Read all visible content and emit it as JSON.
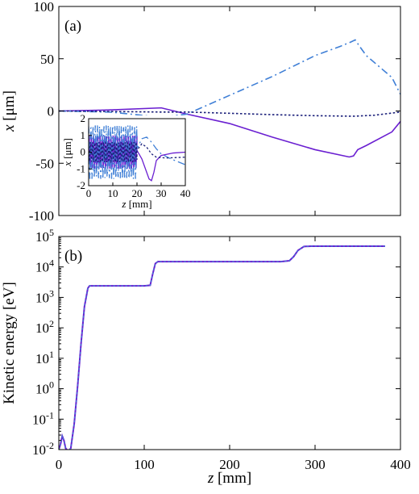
{
  "chart_data": [
    {
      "panel_label": "(a)",
      "type": "line",
      "xlabel_var": "z",
      "xlabel_unit": " [mm]",
      "ylabel_var": "x",
      "ylabel_unit": " [μm]",
      "xlim": [
        0,
        400
      ],
      "ylim": [
        -100,
        100
      ],
      "xticks": [
        0,
        100,
        200,
        300,
        400
      ],
      "show_xtick_labels": false,
      "yticks": [
        -100,
        -50,
        0,
        50,
        100
      ],
      "ytick_labels": [
        "-100",
        "-50",
        "0",
        "50",
        "100"
      ],
      "series": [
        {
          "style": "solid",
          "color": "#6a1fd1",
          "points": [
            [
              0,
              0
            ],
            [
              60,
              1
            ],
            [
              120,
              3
            ],
            [
              150,
              -3
            ],
            [
              200,
              -12
            ],
            [
              250,
              -25
            ],
            [
              300,
              -37
            ],
            [
              340,
              -44
            ],
            [
              345,
              -43
            ],
            [
              350,
              -37
            ],
            [
              360,
              -33
            ],
            [
              390,
              -20
            ],
            [
              410,
              0
            ]
          ]
        },
        {
          "style": "dash-dot",
          "color": "#3f7fd6",
          "points": [
            [
              0,
              0
            ],
            [
              60,
              -1
            ],
            [
              120,
              -6
            ],
            [
              150,
              -3
            ],
            [
              200,
              15
            ],
            [
              250,
              33
            ],
            [
              300,
              53
            ],
            [
              330,
              62
            ],
            [
              342,
              66
            ],
            [
              347,
              68
            ],
            [
              352,
              62
            ],
            [
              360,
              53
            ],
            [
              390,
              32
            ],
            [
              410,
              0
            ]
          ]
        },
        {
          "style": "dotted",
          "color": "#1a1f7a",
          "points": [
            [
              0,
              0
            ],
            [
              60,
              -0.5
            ],
            [
              120,
              -1
            ],
            [
              150,
              -1
            ],
            [
              200,
              -2.2
            ],
            [
              250,
              -3.5
            ],
            [
              300,
              -4.5
            ],
            [
              345,
              -5
            ],
            [
              370,
              -4
            ],
            [
              410,
              0
            ]
          ]
        }
      ],
      "inset": {
        "type": "line",
        "xlabel_var": "z",
        "xlabel_unit": " [mm]",
        "ylabel_var": "x",
        "ylabel_unit": " [μm]",
        "xlim": [
          0,
          40
        ],
        "ylim": [
          -2,
          2
        ],
        "xticks": [
          0,
          10,
          20,
          30,
          40
        ],
        "xtick_labels": [
          "0",
          "10",
          "20",
          "30",
          "40"
        ],
        "yticks": [
          -2,
          -1,
          0,
          1,
          2
        ],
        "ytick_labels": [
          "-2",
          "-1",
          "0",
          "1",
          "2"
        ],
        "oscillation_region": [
          0,
          20
        ],
        "series": [
          {
            "style": "solid",
            "color": "#6a1fd1",
            "osc_amplitude": 1.0,
            "tail": [
              [
                20,
                0.1
              ],
              [
                22,
                -0.4
              ],
              [
                24,
                -1.2
              ],
              [
                25,
                -1.6
              ],
              [
                26,
                -1.7
              ],
              [
                27,
                -1.2
              ],
              [
                28,
                -0.5
              ],
              [
                30,
                -0.2
              ],
              [
                35,
                -0.05
              ],
              [
                40,
                0.0
              ]
            ]
          },
          {
            "style": "dash-dot",
            "color": "#3f7fd6",
            "osc_amplitude": 1.6,
            "tail": [
              [
                20,
                0.2
              ],
              [
                22,
                0.8
              ],
              [
                24,
                0.9
              ],
              [
                26,
                0.6
              ],
              [
                28,
                0.2
              ],
              [
                30,
                -0.1
              ],
              [
                34,
                -0.4
              ],
              [
                40,
                -0.75
              ]
            ]
          },
          {
            "style": "dotted",
            "color": "#1a1f7a",
            "osc_amplitude": 0.6,
            "tail": [
              [
                20,
                0.1
              ],
              [
                22,
                0.5
              ],
              [
                24,
                0.3
              ],
              [
                26,
                -0.1
              ],
              [
                28,
                -0.3
              ],
              [
                32,
                -0.35
              ],
              [
                40,
                -0.3
              ]
            ]
          }
        ]
      }
    },
    {
      "panel_label": "(b)",
      "type": "line",
      "xlabel_var": "z",
      "xlabel_unit": " [mm]",
      "ylabel": "Kinetic energy [eV]",
      "xlim": [
        0,
        400
      ],
      "ylim_log10": [
        -2,
        5
      ],
      "yscale": "log",
      "xticks": [
        0,
        100,
        200,
        300,
        400
      ],
      "xtick_labels": [
        "0",
        "100",
        "200",
        "300",
        "400"
      ],
      "yticks_exp": [
        "-2",
        "-1",
        "0",
        "1",
        "2",
        "3",
        "4",
        "5"
      ],
      "ytick_base": "10",
      "series": [
        {
          "style": "solid",
          "color": "#6a1fd1",
          "points": [
            [
              0,
              0.01
            ],
            [
              2,
              0.015
            ],
            [
              4,
              0.028
            ],
            [
              6,
              0.02
            ],
            [
              8,
              0.011
            ],
            [
              11,
              0.009
            ],
            [
              14,
              0.011
            ],
            [
              18,
              0.07
            ],
            [
              22,
              1.2
            ],
            [
              26,
              30
            ],
            [
              30,
              500
            ],
            [
              34,
              2000
            ],
            [
              36,
              2400
            ],
            [
              40,
              2400
            ],
            [
              100,
              2400
            ],
            [
              107,
              2500
            ],
            [
              110,
              6000
            ],
            [
              113,
              13000
            ],
            [
              116,
              15000
            ],
            [
              120,
              15000
            ],
            [
              260,
              15000
            ],
            [
              270,
              16000
            ],
            [
              275,
              22000
            ],
            [
              280,
              35000
            ],
            [
              287,
              47000
            ],
            [
              295,
              48000
            ],
            [
              382,
              48000
            ]
          ]
        },
        {
          "style": "dotted",
          "color": "#3f7fd6",
          "points": [
            [
              0,
              0.01
            ],
            [
              2,
              0.015
            ],
            [
              4,
              0.028
            ],
            [
              6,
              0.02
            ],
            [
              8,
              0.011
            ],
            [
              11,
              0.009
            ],
            [
              14,
              0.011
            ],
            [
              18,
              0.07
            ],
            [
              22,
              1.2
            ],
            [
              26,
              30
            ],
            [
              30,
              500
            ],
            [
              34,
              2000
            ],
            [
              36,
              2400
            ],
            [
              40,
              2400
            ],
            [
              100,
              2400
            ],
            [
              107,
              2500
            ],
            [
              110,
              6000
            ],
            [
              113,
              13000
            ],
            [
              116,
              15000
            ],
            [
              120,
              15000
            ],
            [
              260,
              15000
            ],
            [
              270,
              16000
            ],
            [
              275,
              22000
            ],
            [
              280,
              35000
            ],
            [
              287,
              47000
            ],
            [
              295,
              48000
            ],
            [
              382,
              48000
            ]
          ]
        }
      ]
    }
  ]
}
